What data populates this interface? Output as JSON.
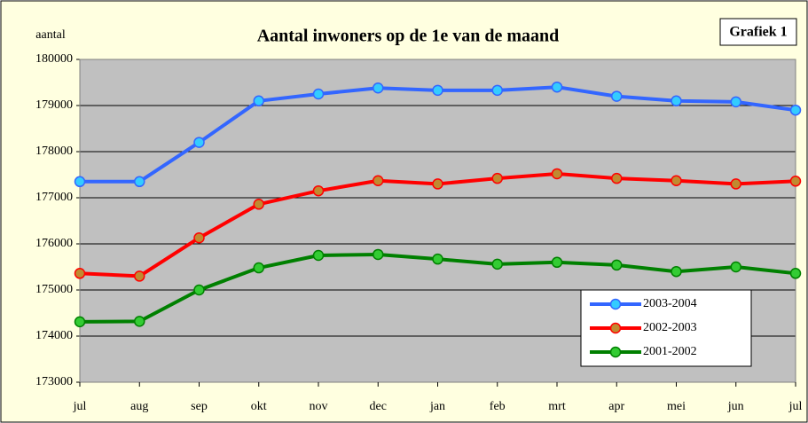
{
  "chart_data": {
    "type": "line",
    "title": "Aantal inwoners op de 1e van de maand",
    "ylabel": "aantal",
    "annotation": "Grafiek 1",
    "categories": [
      "jul",
      "aug",
      "sep",
      "okt",
      "nov",
      "dec",
      "jan",
      "feb",
      "mrt",
      "apr",
      "mei",
      "jun",
      "jul"
    ],
    "series": [
      {
        "name": "2003-2004",
        "color": "#3366ff",
        "marker_color": "#33ccff",
        "values": [
          177350,
          177350,
          178200,
          179100,
          179250,
          179380,
          179330,
          179330,
          179400,
          179200,
          179100,
          179080,
          178900
        ]
      },
      {
        "name": "2002-2003",
        "color": "#ff0000",
        "marker_color": "#c08a30",
        "values": [
          175360,
          175300,
          176130,
          176860,
          177150,
          177370,
          177300,
          177420,
          177520,
          177420,
          177370,
          177300,
          177360
        ]
      },
      {
        "name": "2001-2002",
        "color": "#008000",
        "marker_color": "#33cc33",
        "values": [
          174310,
          174320,
          175000,
          175480,
          175750,
          175770,
          175670,
          175560,
          175600,
          175540,
          175400,
          175500,
          175360
        ]
      }
    ],
    "ylim": [
      173000,
      180000
    ],
    "yticks": [
      173000,
      174000,
      175000,
      176000,
      177000,
      178000,
      179000,
      180000
    ],
    "grid": true,
    "legend": "lower right"
  }
}
